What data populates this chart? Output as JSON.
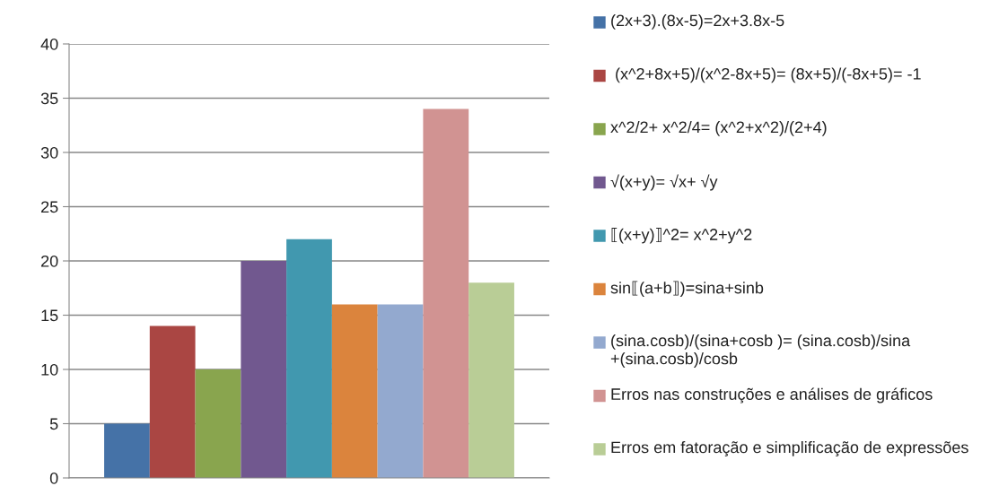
{
  "chart_data": {
    "type": "bar",
    "categories": [
      null
    ],
    "series": [
      {
        "name": "(2x+3).(8x-5)=2x+3.8x-5",
        "color": "#4572a7",
        "values": [
          5
        ]
      },
      {
        "name": " (x^2+8x+5)/(x^2-8x+5)= (8x+5)/(-8x+5)= -1",
        "color": "#aa4643",
        "values": [
          14
        ]
      },
      {
        "name": "x^2/2+ x^2/4= (x^2+x^2)/(2+4)",
        "color": "#89a54e",
        "values": [
          10
        ]
      },
      {
        "name": "√(x+y)= √x+ √y",
        "color": "#71588f",
        "values": [
          20
        ]
      },
      {
        "name": "⟦(x+y)⟧^2= x^2+y^2",
        "color": "#4198af",
        "values": [
          22
        ]
      },
      {
        "name": "sin⟦(a+b⟧)=sina+sinb",
        "color": "#db843d",
        "values": [
          16
        ]
      },
      {
        "name": "(sina.cosb)/(sina+cosb )= (sina.cosb)/sina +(sina.cosb)/cosb",
        "color": "#93a9cf",
        "values": [
          16
        ]
      },
      {
        "name": "Erros nas construções e análises de gráficos",
        "color": "#d19392",
        "values": [
          34
        ]
      },
      {
        "name": "Erros em fatoração e simplificação de expressões",
        "color": "#b9cd96",
        "values": [
          18
        ]
      }
    ],
    "ylim": [
      0,
      40
    ],
    "yticks": [
      0,
      5,
      10,
      15,
      20,
      25,
      30,
      35,
      40
    ],
    "grid": "y",
    "legend": "right"
  }
}
